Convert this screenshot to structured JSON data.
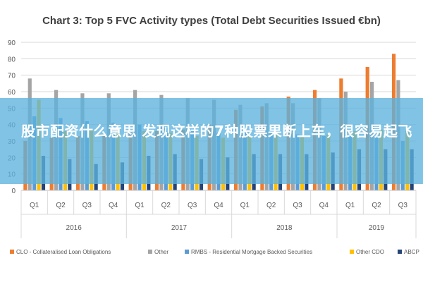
{
  "chart_data": {
    "type": "bar",
    "title": "Chart 3: Top 5 FVC Activity types (Total Debt Securities Issued €bn)",
    "ylim": [
      0,
      90
    ],
    "yticks": [
      0,
      10,
      20,
      30,
      40,
      50,
      60,
      70,
      80,
      90
    ],
    "categories": [
      "Q1",
      "Q2",
      "Q3",
      "Q4",
      "Q1",
      "Q2",
      "Q3",
      "Q4",
      "Q1",
      "Q2",
      "Q3",
      "Q4",
      "Q1",
      "Q2",
      "Q3"
    ],
    "years": [
      "2016",
      "2017",
      "2018",
      "2019"
    ],
    "grid": true,
    "legend_position": "bottom",
    "series": [
      {
        "name": "CLO - Collateralised Loan Obligations",
        "color": "#ed7d31",
        "values": [
          30,
          32,
          33,
          34,
          35,
          36,
          37,
          40,
          49,
          51,
          57,
          61,
          68,
          75,
          83
        ]
      },
      {
        "name": "Other",
        "color": "#a5a5a5",
        "values": [
          68,
          61,
          59,
          59,
          61,
          58,
          56,
          55,
          52,
          53,
          53,
          56,
          60,
          66,
          67
        ]
      },
      {
        "name": "RMBS - Residential Mortgage Backed Securities",
        "color": "#5b9bd5",
        "values": [
          45,
          44,
          42,
          41,
          40,
          38,
          36,
          35,
          36,
          35,
          34,
          33,
          33,
          32,
          30
        ]
      },
      {
        "name": "Other CDO",
        "color": "#ffc000",
        "values": [
          55,
          36,
          37,
          38,
          36,
          35,
          33,
          32,
          33,
          34,
          33,
          34,
          36,
          37,
          36
        ]
      },
      {
        "name": "ABCP",
        "color": "#264478",
        "values": [
          21,
          19,
          16,
          17,
          21,
          22,
          19,
          20,
          22,
          22,
          22,
          23,
          25,
          25,
          25
        ]
      }
    ]
  },
  "overlay": {
    "text": "股市配资什么意思 发现这样的7种股票果断上车，很容易起飞"
  }
}
